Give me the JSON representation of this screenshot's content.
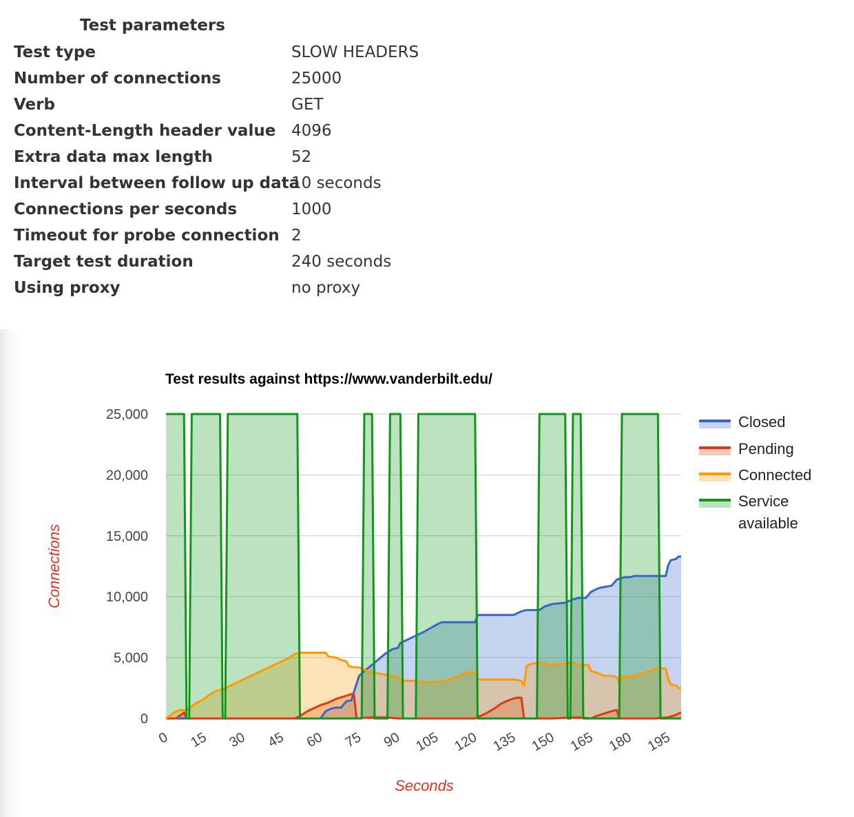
{
  "parameters": {
    "heading": "Test parameters",
    "rows": [
      {
        "label": "Test type",
        "value": "SLOW HEADERS"
      },
      {
        "label": "Number of connections",
        "value": "25000"
      },
      {
        "label": "Verb",
        "value": "GET"
      },
      {
        "label": "Content-Length header value",
        "value": "4096"
      },
      {
        "label": "Extra data max length",
        "value": "52"
      },
      {
        "label": "Interval between follow up data",
        "value": "10 seconds"
      },
      {
        "label": "Connections per seconds",
        "value": "1000"
      },
      {
        "label": "Timeout for probe connection",
        "value": "2"
      },
      {
        "label": "Target test duration",
        "value": "240 seconds"
      },
      {
        "label": "Using proxy",
        "value": "no proxy"
      }
    ]
  },
  "chart_data": {
    "type": "area",
    "title": "Test results against https://www.vanderbilt.edu/",
    "xlabel": "Seconds",
    "ylabel": "Connections",
    "xlim": [
      0,
      200
    ],
    "ylim": [
      0,
      25000
    ],
    "x_ticks": [
      0,
      15,
      30,
      45,
      60,
      75,
      90,
      105,
      120,
      135,
      150,
      165,
      180,
      195
    ],
    "y_ticks": [
      0,
      5000,
      10000,
      15000,
      20000,
      25000
    ],
    "y_tick_labels": [
      "0",
      "5,000",
      "10,000",
      "15,000",
      "20,000",
      "25,000"
    ],
    "grid": true,
    "legend_position": "right",
    "series": [
      {
        "name": "Closed",
        "color": "#3366cc",
        "points": [
          [
            0,
            0
          ],
          [
            60,
            0
          ],
          [
            62,
            600
          ],
          [
            64,
            800
          ],
          [
            66,
            900
          ],
          [
            68,
            900
          ],
          [
            70,
            1400
          ],
          [
            72,
            1500
          ],
          [
            73,
            2200
          ],
          [
            75,
            3500
          ],
          [
            77,
            3900
          ],
          [
            80,
            4400
          ],
          [
            85,
            5300
          ],
          [
            88,
            5700
          ],
          [
            90,
            5800
          ],
          [
            91,
            6200
          ],
          [
            95,
            6600
          ],
          [
            100,
            7100
          ],
          [
            105,
            7700
          ],
          [
            107,
            7900
          ],
          [
            110,
            7900
          ],
          [
            115,
            7900
          ],
          [
            120,
            7900
          ],
          [
            121,
            8500
          ],
          [
            125,
            8500
          ],
          [
            130,
            8500
          ],
          [
            135,
            8500
          ],
          [
            138,
            8800
          ],
          [
            140,
            8900
          ],
          [
            145,
            8900
          ],
          [
            147,
            9200
          ],
          [
            150,
            9400
          ],
          [
            155,
            9500
          ],
          [
            157,
            9700
          ],
          [
            160,
            9900
          ],
          [
            163,
            9900
          ],
          [
            165,
            10400
          ],
          [
            168,
            10700
          ],
          [
            170,
            10800
          ],
          [
            173,
            10900
          ],
          [
            175,
            11400
          ],
          [
            178,
            11600
          ],
          [
            180,
            11600
          ],
          [
            182,
            11700
          ],
          [
            185,
            11700
          ],
          [
            190,
            11700
          ],
          [
            194,
            11700
          ],
          [
            195,
            12600
          ],
          [
            196,
            13000
          ],
          [
            198,
            13100
          ],
          [
            199,
            13300
          ],
          [
            200,
            13300
          ]
        ]
      },
      {
        "name": "Pending",
        "color": "#dc3912",
        "points": [
          [
            0,
            0
          ],
          [
            4,
            0
          ],
          [
            5,
            200
          ],
          [
            6,
            300
          ],
          [
            7,
            500
          ],
          [
            8,
            0
          ],
          [
            50,
            0
          ],
          [
            52,
            200
          ],
          [
            55,
            600
          ],
          [
            58,
            900
          ],
          [
            60,
            1100
          ],
          [
            63,
            1300
          ],
          [
            66,
            1600
          ],
          [
            69,
            1800
          ],
          [
            72,
            2000
          ],
          [
            73,
            1900
          ],
          [
            74,
            0
          ],
          [
            80,
            100
          ],
          [
            85,
            100
          ],
          [
            90,
            0
          ],
          [
            100,
            0
          ],
          [
            120,
            0
          ],
          [
            125,
            500
          ],
          [
            128,
            900
          ],
          [
            130,
            1200
          ],
          [
            133,
            1500
          ],
          [
            136,
            1700
          ],
          [
            138,
            1700
          ],
          [
            139,
            0
          ],
          [
            150,
            0
          ],
          [
            160,
            100
          ],
          [
            165,
            0
          ],
          [
            167,
            200
          ],
          [
            170,
            400
          ],
          [
            173,
            600
          ],
          [
            175,
            700
          ],
          [
            176,
            0
          ],
          [
            190,
            0
          ],
          [
            195,
            100
          ],
          [
            198,
            300
          ],
          [
            200,
            500
          ]
        ]
      },
      {
        "name": "Connected",
        "color": "#ff9900",
        "points": [
          [
            0,
            0
          ],
          [
            2,
            300
          ],
          [
            4,
            600
          ],
          [
            6,
            700
          ],
          [
            8,
            700
          ],
          [
            10,
            1000
          ],
          [
            12,
            1300
          ],
          [
            14,
            1500
          ],
          [
            16,
            1800
          ],
          [
            18,
            2100
          ],
          [
            20,
            2300
          ],
          [
            22,
            2400
          ],
          [
            25,
            2700
          ],
          [
            28,
            3000
          ],
          [
            32,
            3400
          ],
          [
            35,
            3700
          ],
          [
            38,
            4000
          ],
          [
            42,
            4400
          ],
          [
            45,
            4700
          ],
          [
            48,
            5000
          ],
          [
            50,
            5300
          ],
          [
            52,
            5400
          ],
          [
            55,
            5400
          ],
          [
            58,
            5400
          ],
          [
            62,
            5400
          ],
          [
            63,
            5100
          ],
          [
            66,
            5000
          ],
          [
            68,
            4800
          ],
          [
            70,
            4700
          ],
          [
            71,
            4300
          ],
          [
            73,
            4200
          ],
          [
            75,
            4200
          ],
          [
            77,
            4000
          ],
          [
            80,
            3800
          ],
          [
            85,
            3600
          ],
          [
            90,
            3400
          ],
          [
            92,
            3100
          ],
          [
            95,
            3100
          ],
          [
            100,
            3000
          ],
          [
            105,
            3000
          ],
          [
            110,
            3200
          ],
          [
            115,
            3600
          ],
          [
            117,
            3800
          ],
          [
            120,
            3800
          ],
          [
            121,
            3200
          ],
          [
            125,
            3200
          ],
          [
            130,
            3200
          ],
          [
            135,
            3200
          ],
          [
            138,
            3100
          ],
          [
            139,
            2700
          ],
          [
            140,
            4300
          ],
          [
            142,
            4500
          ],
          [
            145,
            4600
          ],
          [
            148,
            4500
          ],
          [
            150,
            4400
          ],
          [
            152,
            4500
          ],
          [
            155,
            4500
          ],
          [
            158,
            4600
          ],
          [
            160,
            4400
          ],
          [
            162,
            4400
          ],
          [
            164,
            4400
          ],
          [
            165,
            3900
          ],
          [
            168,
            3700
          ],
          [
            170,
            3500
          ],
          [
            173,
            3500
          ],
          [
            175,
            3400
          ],
          [
            176,
            2900
          ],
          [
            177,
            3500
          ],
          [
            180,
            3400
          ],
          [
            183,
            3600
          ],
          [
            185,
            3700
          ],
          [
            188,
            3900
          ],
          [
            190,
            4100
          ],
          [
            194,
            4100
          ],
          [
            195,
            3200
          ],
          [
            196,
            2800
          ],
          [
            198,
            2700
          ],
          [
            199,
            2500
          ],
          [
            200,
            2500
          ]
        ]
      },
      {
        "name": "Service available",
        "color": "#109618",
        "points": [
          [
            0,
            25000
          ],
          [
            7,
            25000
          ],
          [
            8,
            0
          ],
          [
            9,
            0
          ],
          [
            10,
            25000
          ],
          [
            21,
            25000
          ],
          [
            22,
            0
          ],
          [
            23,
            0
          ],
          [
            24,
            25000
          ],
          [
            51,
            25000
          ],
          [
            52,
            0
          ],
          [
            76,
            0
          ],
          [
            77,
            25000
          ],
          [
            80,
            25000
          ],
          [
            81,
            0
          ],
          [
            86,
            0
          ],
          [
            87,
            25000
          ],
          [
            91,
            25000
          ],
          [
            92,
            0
          ],
          [
            97,
            0
          ],
          [
            98,
            25000
          ],
          [
            120,
            25000
          ],
          [
            121,
            0
          ],
          [
            144,
            0
          ],
          [
            145,
            25000
          ],
          [
            155,
            25000
          ],
          [
            156,
            0
          ],
          [
            157,
            0
          ],
          [
            158,
            25000
          ],
          [
            161,
            25000
          ],
          [
            162,
            0
          ],
          [
            176,
            0
          ],
          [
            177,
            25000
          ],
          [
            191,
            25000
          ],
          [
            192,
            0
          ],
          [
            200,
            0
          ]
        ]
      }
    ]
  }
}
